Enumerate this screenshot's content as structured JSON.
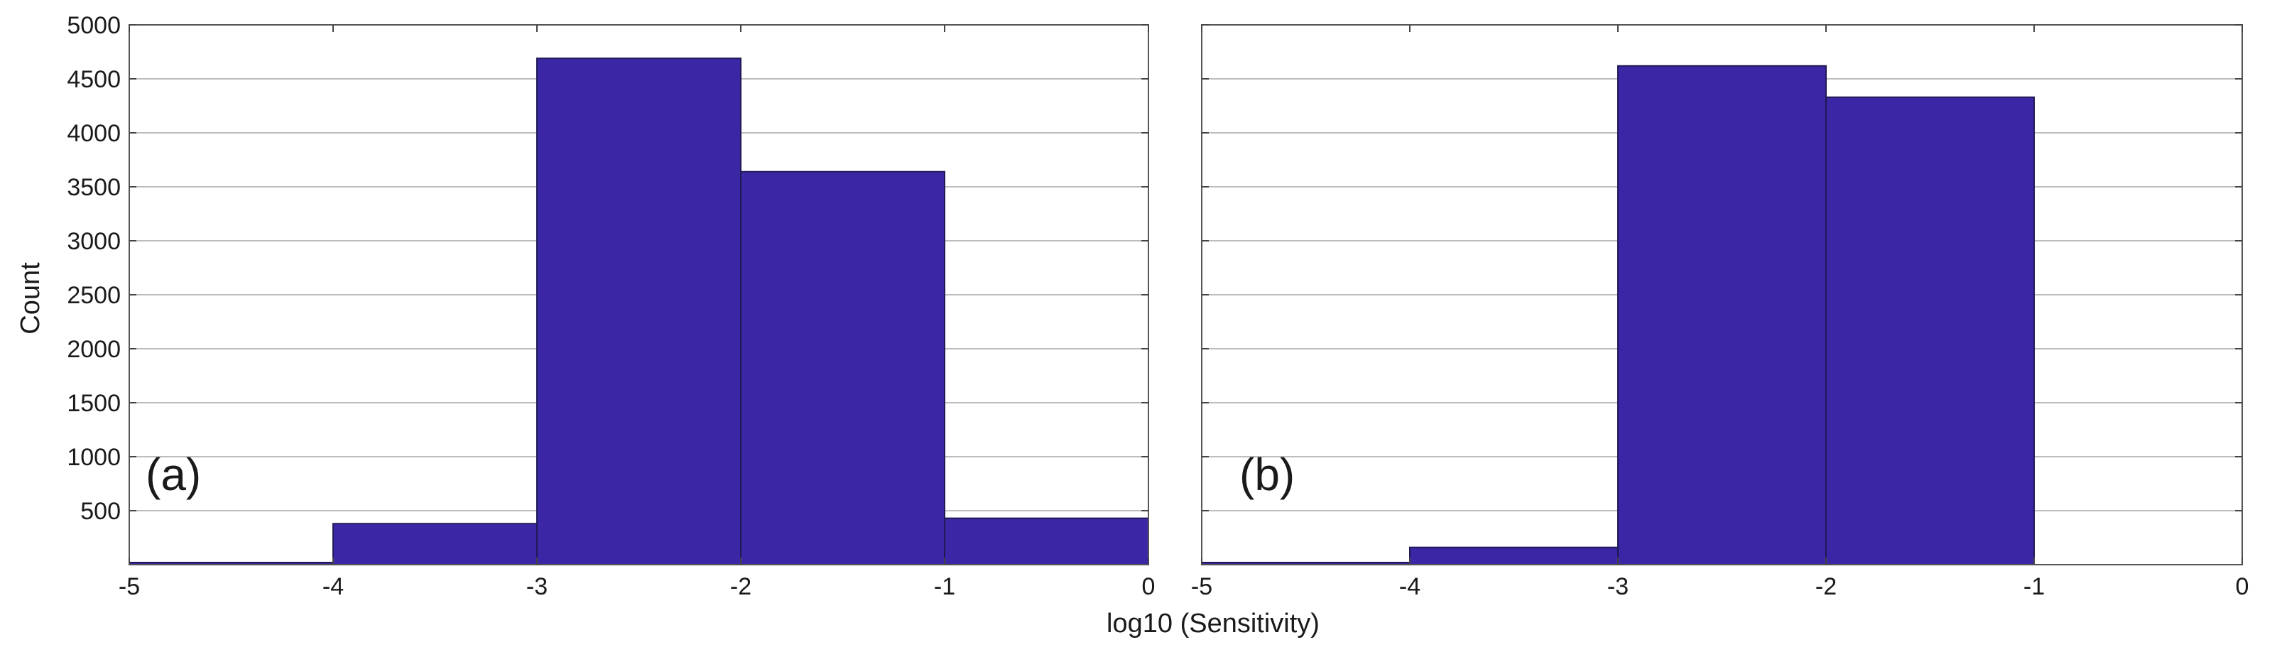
{
  "xlabel": "log10 (Sensitivity)",
  "ylabel": "Count",
  "bar_color": "#3b27a6",
  "chart_data": [
    {
      "type": "bar",
      "panel_label": "(a)",
      "bin_edges": [
        -5,
        -4,
        -3,
        -2,
        -1,
        0
      ],
      "values": [
        20,
        380,
        4690,
        3640,
        430
      ],
      "xlim": [
        -5,
        0
      ],
      "ylim": [
        0,
        5000
      ],
      "xticks": [
        -5,
        -4,
        -3,
        -2,
        -1,
        0
      ],
      "yticks": [
        500,
        1000,
        1500,
        2000,
        2500,
        3000,
        3500,
        4000,
        4500,
        5000
      ],
      "grid": true
    },
    {
      "type": "bar",
      "panel_label": "(b)",
      "bin_edges": [
        -5,
        -4,
        -3,
        -2,
        -1,
        0
      ],
      "values": [
        20,
        160,
        4620,
        4330,
        0
      ],
      "xlim": [
        -5,
        0
      ],
      "ylim": [
        0,
        5000
      ],
      "xticks": [
        -5,
        -4,
        -3,
        -2,
        -1,
        0
      ],
      "yticks": [
        500,
        1000,
        1500,
        2000,
        2500,
        3000,
        3500,
        4000,
        4500,
        5000
      ],
      "grid": true
    }
  ]
}
